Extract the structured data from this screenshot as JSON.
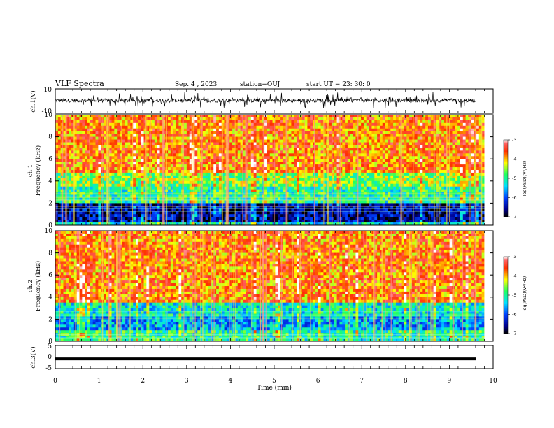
{
  "header": {
    "title": "VLF Spectra",
    "date": "Sep. 4 , 2023",
    "station": "station=OUJ",
    "start": "start UT =  23: 30: 0"
  },
  "chart_data": [
    {
      "type": "line",
      "name": "ch1-waveform",
      "ylabel": "ch.1(V)",
      "ylim": [
        -10,
        10
      ],
      "yticks": [
        "10",
        "-10"
      ],
      "xlim": [
        0,
        10
      ],
      "x_end": 9.8
    },
    {
      "type": "heatmap",
      "name": "ch1-spectrogram",
      "ylabel": "ch.1\nFrequency (kHz)",
      "ylim": [
        0,
        10
      ],
      "yticks": [
        "0",
        "2",
        "4",
        "6",
        "8",
        "10"
      ],
      "xlim": [
        0,
        10
      ],
      "x_end": 9.8,
      "colorbar": {
        "label": "log(PSD)(V²/Hz)",
        "ticks": [
          "-3",
          "-4",
          "-5",
          "-6",
          "-7"
        ],
        "range": [
          -7,
          -3
        ]
      },
      "bands_khz": [
        {
          "from": 0,
          "to": 0.3,
          "level": -5.2
        },
        {
          "from": 0.3,
          "to": 2.0,
          "level": -6.5
        },
        {
          "from": 2.0,
          "to": 3.5,
          "level": -5.0
        },
        {
          "from": 3.5,
          "to": 4.8,
          "level": -4.6
        },
        {
          "from": 4.8,
          "to": 10,
          "level": -3.8
        }
      ]
    },
    {
      "type": "heatmap",
      "name": "ch2-spectrogram",
      "ylabel": "ch.2\nFrequency (kHz)",
      "ylim": [
        0,
        10
      ],
      "yticks": [
        "0",
        "2",
        "4",
        "6",
        "8",
        "10"
      ],
      "xlim": [
        0,
        10
      ],
      "x_end": 9.8,
      "colorbar": {
        "label": "log(PSD)(V²/Hz)",
        "ticks": [
          "-3",
          "-4",
          "-5",
          "-6",
          "-7"
        ],
        "range": [
          -7,
          -3
        ]
      },
      "bands_khz": [
        {
          "from": 0,
          "to": 1.0,
          "level": -5.0
        },
        {
          "from": 1.0,
          "to": 2.2,
          "level": -5.6
        },
        {
          "from": 2.2,
          "to": 3.5,
          "level": -5.2
        },
        {
          "from": 3.5,
          "to": 10,
          "level": -3.8
        }
      ]
    },
    {
      "type": "line",
      "name": "ch3-waveform",
      "ylabel": "ch.3(V)",
      "ylim": [
        -5,
        5
      ],
      "yticks": [
        "5",
        "0",
        "-5"
      ],
      "xlim": [
        0,
        10
      ],
      "x_end": 9.8,
      "level": -0.8
    }
  ],
  "xaxis": {
    "label": "Time (min)",
    "ticks": [
      "0",
      "1",
      "2",
      "3",
      "4",
      "5",
      "6",
      "7",
      "8",
      "9",
      "10"
    ]
  }
}
